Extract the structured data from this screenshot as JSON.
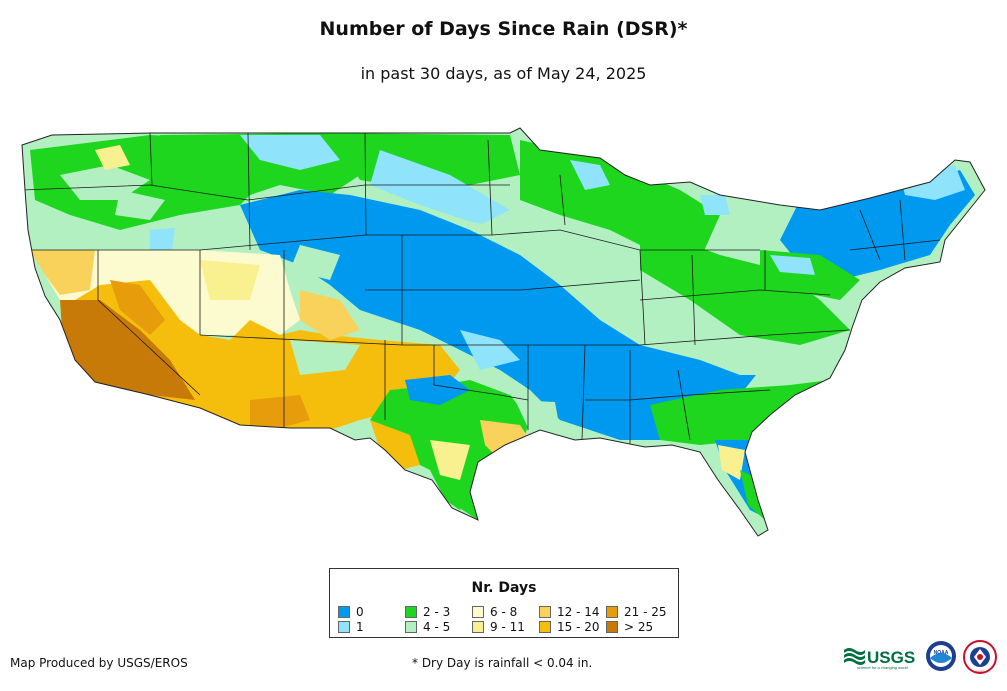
{
  "header": {
    "title": "Number of Days Since Rain (DSR)*",
    "subtitle": "in past 30 days, as of May 24, 2025"
  },
  "legend": {
    "title": "Nr. Days",
    "items": [
      {
        "label": "0",
        "color": "#0099f0"
      },
      {
        "label": "1",
        "color": "#8fe3fa"
      },
      {
        "label": "2 - 3",
        "color": "#1ed61e"
      },
      {
        "label": "4 - 5",
        "color": "#b2f0c2"
      },
      {
        "label": "6 - 8",
        "color": "#fbfbcf"
      },
      {
        "label": "9 - 11",
        "color": "#f9f090"
      },
      {
        "label": "12 - 14",
        "color": "#f9d25c"
      },
      {
        "label": "15 - 20",
        "color": "#f6be0c"
      },
      {
        "label": "21 - 25",
        "color": "#e79c0c"
      },
      {
        "label": "> 25",
        "color": "#c77a08"
      }
    ]
  },
  "footer": {
    "producer": "Map Produced by USGS/EROS",
    "note": "* Dry Day is rainfall < 0.04 in."
  },
  "logos": {
    "usgs": "USGS",
    "usgs_tagline": "science for a changing world",
    "noaa": "NOAA",
    "nws": "NWS"
  },
  "colors": {
    "border": "#222222",
    "state_lines": "#1a1a1a"
  }
}
